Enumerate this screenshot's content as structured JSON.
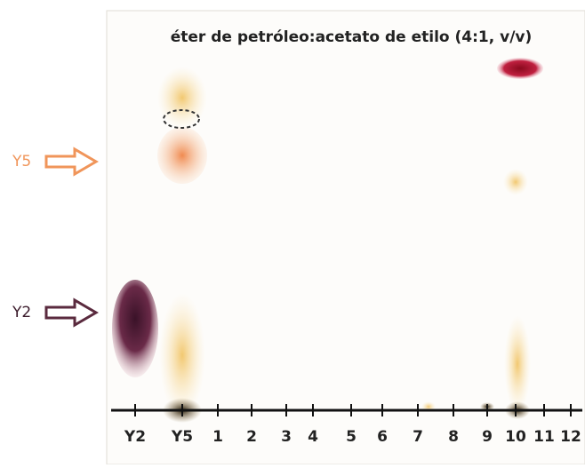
{
  "title": "éter de petróleo:acetato de etilo (4:1, v/v)",
  "markers": [
    {
      "label": "Y5"
    },
    {
      "label": "Y2"
    }
  ],
  "lanes": [
    "Y2",
    "Y5",
    "1",
    "2",
    "3",
    "4",
    "5",
    "6",
    "7",
    "8",
    "9",
    "10",
    "11",
    "12"
  ]
}
